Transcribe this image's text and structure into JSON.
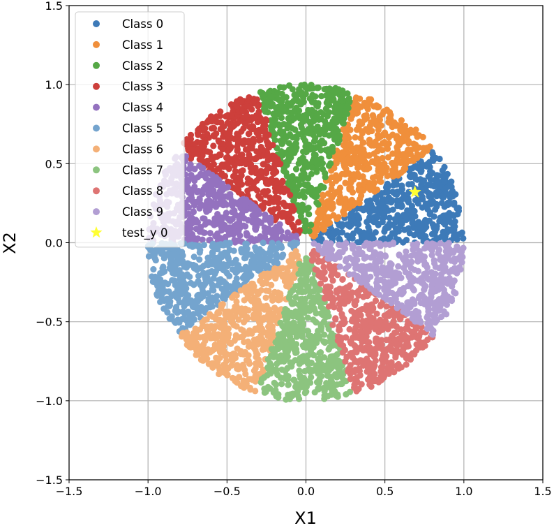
{
  "chart_data": {
    "type": "scatter",
    "title": "",
    "xlabel": "X1",
    "ylabel": "X2",
    "xlim": [
      -1.5,
      1.5
    ],
    "ylim": [
      -1.5,
      1.5
    ],
    "xticks": [
      -1.5,
      -1.0,
      -0.5,
      0.0,
      0.5,
      1.0,
      1.5
    ],
    "yticks": [
      -1.5,
      -1.0,
      -0.5,
      0.0,
      0.5,
      1.0,
      1.5
    ],
    "xtick_labels": [
      "−1.5",
      "−1.0",
      "−0.5",
      "0.0",
      "0.5",
      "1.0",
      "1.5"
    ],
    "ytick_labels": [
      "−1.5",
      "−1.0",
      "−0.5",
      "0.0",
      "0.5",
      "1.0",
      "1.5"
    ],
    "grid": true,
    "legend_position": "top-left",
    "shape": "disk of radius ~1.0 with inner hole radius ~0.05, split into 10 equal angular sectors",
    "series": [
      {
        "name": "Class 0",
        "color": "#3d7ab8",
        "angle_range_deg": [
          0,
          36
        ]
      },
      {
        "name": "Class 1",
        "color": "#f08f3b",
        "angle_range_deg": [
          36,
          72
        ]
      },
      {
        "name": "Class 2",
        "color": "#55a846",
        "angle_range_deg": [
          72,
          108
        ]
      },
      {
        "name": "Class 3",
        "color": "#cd3f3b",
        "angle_range_deg": [
          108,
          144
        ]
      },
      {
        "name": "Class 4",
        "color": "#9472bf",
        "angle_range_deg": [
          144,
          180
        ]
      },
      {
        "name": "Class 5",
        "color": "#74a4ce",
        "angle_range_deg": [
          180,
          216
        ]
      },
      {
        "name": "Class 6",
        "color": "#f4b077",
        "angle_range_deg": [
          216,
          252
        ]
      },
      {
        "name": "Class 7",
        "color": "#8cc47f",
        "angle_range_deg": [
          252,
          288
        ]
      },
      {
        "name": "Class 8",
        "color": "#de7473",
        "angle_range_deg": [
          288,
          324
        ]
      },
      {
        "name": "Class 9",
        "color": "#b29ed3",
        "angle_range_deg": [
          324,
          360
        ]
      }
    ],
    "highlight": {
      "name": "test_y 0",
      "x": 0.69,
      "y": 0.32,
      "marker": "star",
      "color": "#ffff33"
    }
  }
}
